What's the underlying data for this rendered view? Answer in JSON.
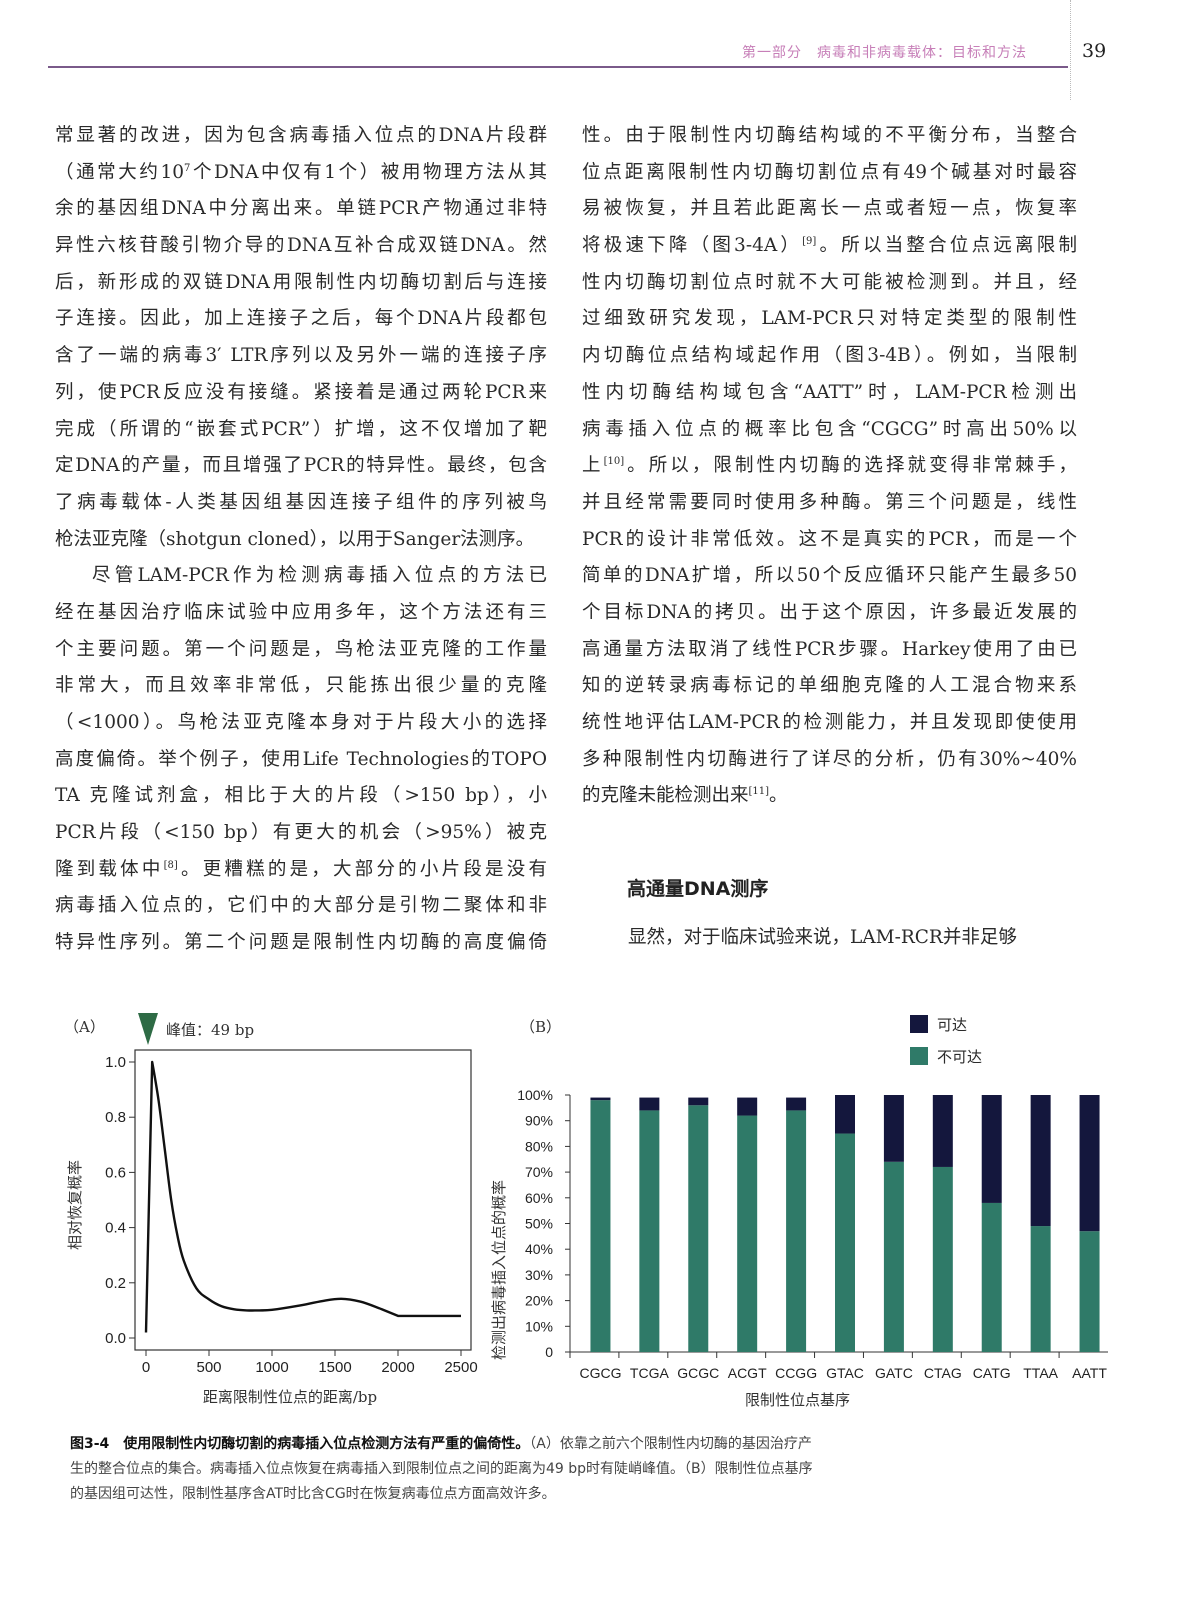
{
  "header": {
    "running_title": "第一部分　病毒和非病毒载体：目标和方法",
    "page_number": "39"
  },
  "left_column": [
    [
      "常显著的改进，因为包含病毒插入位点的DNA片段群"
    ],
    [
      "（通常大约10",
      "7",
      "个DNA中仅有1个）被用物理方法从其"
    ],
    [
      "余的基因组DNA中分离出来。单链PCR产物通过非特"
    ],
    [
      "异性六核苷酸引物介导的DNA互补合成双链DNA。然"
    ],
    [
      "后，新形成的双链DNA用限制性内切酶切割后与连接"
    ],
    [
      "子连接。因此，加上连接子之后，每个DNA片段都包"
    ],
    [
      "含了一端的病毒3′ LTR序列以及另外一端的连接子序"
    ],
    [
      "列，使PCR反应没有接缝。紧接着是通过两轮PCR来"
    ],
    [
      "完成（所谓的“嵌套式PCR”）扩增，这不仅增加了靶"
    ],
    [
      "定DNA的产量，而且增强了PCR的特异性。最终，包含"
    ],
    [
      "了病毒载体-人类基因组基因连接子组件的序列被鸟"
    ],
    [
      "枪法亚克隆（shotgun cloned），以用于Sanger法测序。"
    ],
    [
      "尽管LAM-PCR作为检测病毒插入位点的方法已"
    ],
    [
      "经在基因治疗临床试验中应用多年，这个方法还有三"
    ],
    [
      "个主要问题。第一个问题是，鸟枪法亚克隆的工作量"
    ],
    [
      "非常大，而且效率非常低，只能拣出很少量的克隆"
    ],
    [
      "（<1000）。鸟枪法亚克隆本身对于片段大小的选择"
    ],
    [
      "高度偏倚。举个例子，使用Life Technologies的TOPO"
    ],
    [
      "TA 克隆试剂盒，相比于大的片段（>150 bp），小"
    ],
    [
      "PCR片段（<150 bp）有更大的机会（>95%）被克"
    ],
    [
      "隆到载体中",
      "[8]",
      "。更糟糕的是，大部分的小片段是没有"
    ],
    [
      "病毒插入位点的，它们中的大部分是引物二聚体和非"
    ],
    [
      "特异性序列。第二个问题是限制性内切酶的高度偏倚"
    ]
  ],
  "right_column": [
    [
      "性。由于限制性内切酶结构域的不平衡分布，当整合"
    ],
    [
      "位点距离限制性内切酶切割位点有49个碱基对时最容"
    ],
    [
      "易被恢复，并且若此距离长一点或者短一点，恢复率"
    ],
    [
      "将极速下降（图3-4A）",
      "[9]",
      "。所以当整合位点远离限制"
    ],
    [
      "性内切酶切割位点时就不大可能被检测到。并且，经"
    ],
    [
      "过细致研究发现，LAM-PCR只对特定类型的限制性"
    ],
    [
      "内切酶位点结构域起作用（图3-4B）。例如，当限制"
    ],
    [
      "性内切酶结构域包含“AATT”时，LAM-PCR检测出"
    ],
    [
      "病毒插入位点的概率比包含“CGCG”时高出50%以"
    ],
    [
      "上",
      "[10]",
      "。所以，限制性内切酶的选择就变得非常棘手，"
    ],
    [
      "并且经常需要同时使用多种酶。第三个问题是，线性"
    ],
    [
      "PCR的设计非常低效。这不是真实的PCR，而是一个"
    ],
    [
      "简单的DNA扩增，所以50个反应循环只能产生最多50"
    ],
    [
      "个目标DNA的拷贝。出于这个原因，许多最近发展的"
    ],
    [
      "高通量方法取消了线性PCR步骤。Harkey使用了由已"
    ],
    [
      "知的逆转录病毒标记的单细胞克隆的人工混合物来系"
    ],
    [
      "统性地评估LAM-PCR的检测能力，并且发现即使使用"
    ],
    [
      "多种限制性内切酶进行了详尽的分析，仍有30%~40%"
    ],
    [
      "的克隆未能检测出来",
      "[11]",
      "。"
    ]
  ],
  "section": {
    "title": "高通量DNA测序",
    "first_line": "显然，对于临床试验来说，LAM-RCR并非足够"
  },
  "chart_data": [
    {
      "type": "line",
      "panel_label": "（A）",
      "annotation": "峰值：49 bp",
      "annotation_marker_color": "#2e6b45",
      "xlabel": "距离限制性位点的距离/bp",
      "ylabel": "相对恢复概率",
      "xlim": [
        0,
        2500
      ],
      "ylim": [
        0,
        1.0
      ],
      "xticks": [
        "0",
        "500",
        "1000",
        "1500",
        "2000",
        "2500"
      ],
      "yticks": [
        "0.0",
        "0.2",
        "0.4",
        "0.6",
        "0.8",
        "1.0"
      ],
      "grid": false,
      "x": [
        0,
        49,
        100,
        150,
        200,
        250,
        300,
        400,
        500,
        600,
        700,
        800,
        900,
        1000,
        1200,
        1400,
        1550,
        1700,
        1850,
        2000,
        2500
      ],
      "y": [
        0.02,
        1.0,
        0.86,
        0.68,
        0.5,
        0.37,
        0.28,
        0.18,
        0.14,
        0.115,
        0.104,
        0.1,
        0.1,
        0.102,
        0.116,
        0.134,
        0.142,
        0.132,
        0.108,
        0.08,
        0.08
      ]
    },
    {
      "type": "bar",
      "stacked": true,
      "panel_label": "（B）",
      "xlabel": "限制性位点基序",
      "ylabel": "检测出病毒插入位点的概率",
      "ylim": [
        0,
        100
      ],
      "yticks": [
        "0",
        "10%",
        "20%",
        "30%",
        "40%",
        "50%",
        "60%",
        "70%",
        "80%",
        "90%",
        "100%"
      ],
      "legend_position": "top-right",
      "categories": [
        "CGCG",
        "TCGA",
        "GCGC",
        "ACGT",
        "CCGG",
        "GTAC",
        "GATC",
        "CTAG",
        "CATG",
        "TTAA",
        "AATT"
      ],
      "series": [
        {
          "name": "不可达",
          "color": "#2f7a68",
          "values": [
            98,
            94,
            96,
            92,
            94,
            85,
            74,
            72,
            58,
            49,
            47
          ]
        },
        {
          "name": "可达",
          "color": "#14173d",
          "values": [
            1,
            5,
            3,
            7,
            5,
            15,
            26,
            28,
            42,
            51,
            53
          ]
        }
      ]
    }
  ],
  "caption": {
    "label": "图3-4",
    "title": "使用限制性内切酶切割的病毒插入位点检测方法有严重的偏倚性。",
    "line1_rest": "（A）依靠之前六个限制性内切酶的基因治疗产",
    "line2": "生的整合位点的集合。病毒插入位点恢复在病毒插入到限制位点之间的距离为49 bp时有陡峭峰值。（B）限制性位点基序",
    "line3": "的基因组可达性，限制性基序含AT时比含CG时在恢复病毒位点方面高效许多。"
  }
}
